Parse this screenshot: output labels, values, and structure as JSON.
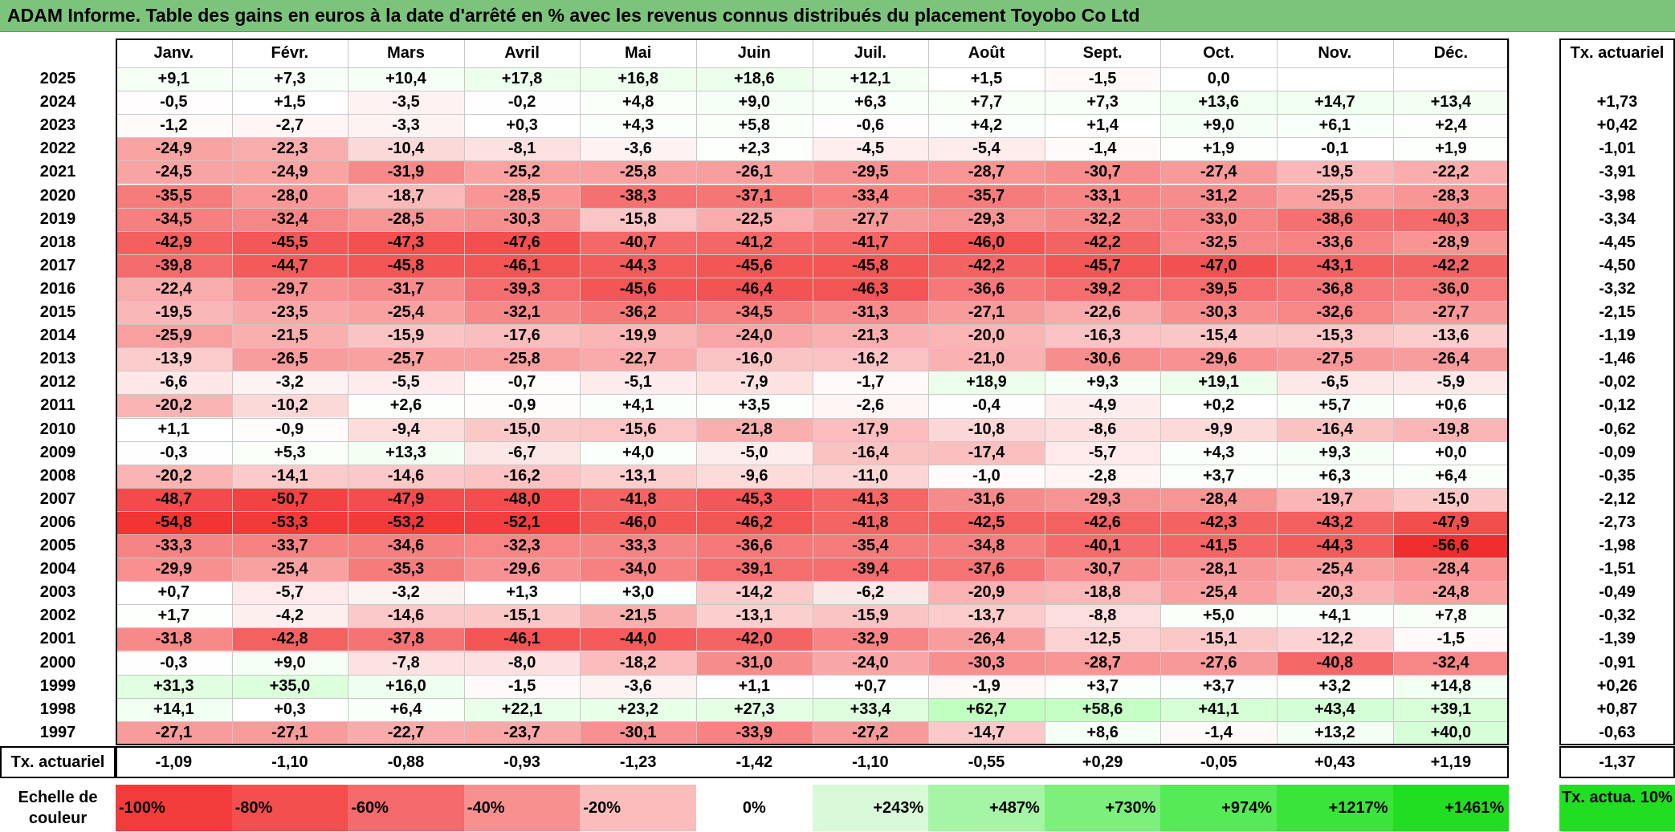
{
  "title": "ADAM Informe. Table des gains en euros à la date d'arrêté en % avec les revenus connus distribués du placement Toyobo Co Ltd",
  "chart_data": {
    "type": "heatmap",
    "title": "ADAM Informe. Table des gains en euros à la date d'arrêté en % avec les revenus connus distribués du placement Toyobo Co Ltd",
    "months": [
      "Janv.",
      "Févr.",
      "Mars",
      "Avril",
      "Mai",
      "Juin",
      "Juil.",
      "Août",
      "Sept.",
      "Oct.",
      "Nov.",
      "Déc."
    ],
    "annual_header": "Tx. actuariel",
    "rows": [
      {
        "year": "2025",
        "values": [
          "+9,1",
          "+7,3",
          "+10,4",
          "+17,8",
          "+16,8",
          "+18,6",
          "+12,1",
          "+1,5",
          "-1,5",
          "0,0",
          "",
          ""
        ],
        "annual": ""
      },
      {
        "year": "2024",
        "values": [
          "-0,5",
          "+1,5",
          "-3,5",
          "-0,2",
          "+4,8",
          "+9,0",
          "+6,3",
          "+7,7",
          "+7,3",
          "+13,6",
          "+14,7",
          "+13,4"
        ],
        "annual": "+1,73"
      },
      {
        "year": "2023",
        "values": [
          "-1,2",
          "-2,7",
          "-3,3",
          "+0,3",
          "+4,3",
          "+5,8",
          "-0,6",
          "+4,2",
          "+1,4",
          "+9,0",
          "+6,1",
          "+2,4"
        ],
        "annual": "+0,42"
      },
      {
        "year": "2022",
        "values": [
          "-24,9",
          "-22,3",
          "-10,4",
          "-8,1",
          "-3,6",
          "+2,3",
          "-4,5",
          "-5,4",
          "-1,4",
          "+1,9",
          "-0,1",
          "+1,9"
        ],
        "annual": "-1,01"
      },
      {
        "year": "2021",
        "values": [
          "-24,5",
          "-24,9",
          "-31,9",
          "-25,2",
          "-25,8",
          "-26,1",
          "-29,5",
          "-28,7",
          "-30,7",
          "-27,4",
          "-19,5",
          "-22,2"
        ],
        "annual": "-3,91"
      },
      {
        "year": "2020",
        "values": [
          "-35,5",
          "-28,0",
          "-18,7",
          "-28,5",
          "-38,3",
          "-37,1",
          "-33,4",
          "-35,7",
          "-33,1",
          "-31,2",
          "-25,5",
          "-28,3"
        ],
        "annual": "-3,98"
      },
      {
        "year": "2019",
        "values": [
          "-34,5",
          "-32,4",
          "-28,5",
          "-30,3",
          "-15,8",
          "-22,5",
          "-27,7",
          "-29,3",
          "-32,2",
          "-33,0",
          "-38,6",
          "-40,3"
        ],
        "annual": "-3,34"
      },
      {
        "year": "2018",
        "values": [
          "-42,9",
          "-45,5",
          "-47,3",
          "-47,6",
          "-40,7",
          "-41,2",
          "-41,7",
          "-46,0",
          "-42,2",
          "-32,5",
          "-33,6",
          "-28,9"
        ],
        "annual": "-4,45"
      },
      {
        "year": "2017",
        "values": [
          "-39,8",
          "-44,7",
          "-45,8",
          "-46,1",
          "-44,3",
          "-45,6",
          "-45,8",
          "-42,2",
          "-45,7",
          "-47,0",
          "-43,1",
          "-42,2"
        ],
        "annual": "-4,50"
      },
      {
        "year": "2016",
        "values": [
          "-22,4",
          "-29,7",
          "-31,7",
          "-39,3",
          "-45,6",
          "-46,4",
          "-46,3",
          "-36,6",
          "-39,2",
          "-39,5",
          "-36,8",
          "-36,0"
        ],
        "annual": "-3,32"
      },
      {
        "year": "2015",
        "values": [
          "-19,5",
          "-23,5",
          "-25,4",
          "-32,1",
          "-36,2",
          "-34,5",
          "-31,3",
          "-27,1",
          "-22,6",
          "-30,3",
          "-32,6",
          "-27,7"
        ],
        "annual": "-2,15"
      },
      {
        "year": "2014",
        "values": [
          "-25,9",
          "-21,5",
          "-15,9",
          "-17,6",
          "-19,9",
          "-24,0",
          "-21,3",
          "-20,0",
          "-16,3",
          "-15,4",
          "-15,3",
          "-13,6"
        ],
        "annual": "-1,19"
      },
      {
        "year": "2013",
        "values": [
          "-13,9",
          "-26,5",
          "-25,7",
          "-25,8",
          "-22,7",
          "-16,0",
          "-16,2",
          "-21,0",
          "-30,6",
          "-29,6",
          "-27,5",
          "-26,4"
        ],
        "annual": "-1,46"
      },
      {
        "year": "2012",
        "values": [
          "-6,6",
          "-3,2",
          "-5,5",
          "-0,7",
          "-5,1",
          "-7,9",
          "-1,7",
          "+18,9",
          "+9,3",
          "+19,1",
          "-6,5",
          "-5,9"
        ],
        "annual": "-0,02"
      },
      {
        "year": "2011",
        "values": [
          "-20,2",
          "-10,2",
          "+2,6",
          "-0,9",
          "+4,1",
          "+3,5",
          "-2,6",
          "-0,4",
          "-4,9",
          "+0,2",
          "+5,7",
          "+0,6"
        ],
        "annual": "-0,12"
      },
      {
        "year": "2010",
        "values": [
          "+1,1",
          "-0,9",
          "-9,4",
          "-15,0",
          "-15,6",
          "-21,8",
          "-17,9",
          "-10,8",
          "-8,6",
          "-9,9",
          "-16,4",
          "-19,8"
        ],
        "annual": "-0,62"
      },
      {
        "year": "2009",
        "values": [
          "-0,3",
          "+5,3",
          "+13,3",
          "-6,7",
          "+4,0",
          "-5,0",
          "-16,4",
          "-17,4",
          "-5,7",
          "+4,3",
          "+9,3",
          "+0,0"
        ],
        "annual": "-0,09"
      },
      {
        "year": "2008",
        "values": [
          "-20,2",
          "-14,1",
          "-14,6",
          "-16,2",
          "-13,1",
          "-9,6",
          "-11,0",
          "-1,0",
          "-2,8",
          "+3,7",
          "+6,3",
          "+6,4"
        ],
        "annual": "-0,35"
      },
      {
        "year": "2007",
        "values": [
          "-48,7",
          "-50,7",
          "-47,9",
          "-48,0",
          "-41,8",
          "-45,3",
          "-41,3",
          "-31,6",
          "-29,3",
          "-28,4",
          "-19,7",
          "-15,0"
        ],
        "annual": "-2,12"
      },
      {
        "year": "2006",
        "values": [
          "-54,8",
          "-53,3",
          "-53,2",
          "-52,1",
          "-46,0",
          "-46,2",
          "-41,8",
          "-42,5",
          "-42,6",
          "-42,3",
          "-43,2",
          "-47,9"
        ],
        "annual": "-2,73"
      },
      {
        "year": "2005",
        "values": [
          "-33,3",
          "-33,7",
          "-34,6",
          "-32,3",
          "-33,3",
          "-36,6",
          "-35,4",
          "-34,8",
          "-40,1",
          "-41,5",
          "-44,3",
          "-56,6"
        ],
        "annual": "-1,98"
      },
      {
        "year": "2004",
        "values": [
          "-29,9",
          "-25,4",
          "-35,3",
          "-29,6",
          "-34,0",
          "-39,1",
          "-39,4",
          "-37,6",
          "-30,7",
          "-28,1",
          "-25,4",
          "-28,4"
        ],
        "annual": "-1,51"
      },
      {
        "year": "2003",
        "values": [
          "+0,7",
          "-5,7",
          "-3,2",
          "+1,3",
          "+3,0",
          "-14,2",
          "-6,2",
          "-20,9",
          "-18,8",
          "-25,4",
          "-20,3",
          "-24,8"
        ],
        "annual": "-0,49"
      },
      {
        "year": "2002",
        "values": [
          "+1,7",
          "-4,2",
          "-14,6",
          "-15,1",
          "-21,5",
          "-13,1",
          "-15,9",
          "-13,7",
          "-8,8",
          "+5,0",
          "+4,1",
          "+7,8"
        ],
        "annual": "-0,32"
      },
      {
        "year": "2001",
        "values": [
          "-31,8",
          "-42,8",
          "-37,8",
          "-46,1",
          "-44,0",
          "-42,0",
          "-32,9",
          "-26,4",
          "-12,5",
          "-15,1",
          "-12,2",
          "-1,5"
        ],
        "annual": "-1,39"
      },
      {
        "year": "2000",
        "values": [
          "-0,3",
          "+9,0",
          "-7,8",
          "-8,0",
          "-18,2",
          "-31,0",
          "-24,0",
          "-30,3",
          "-28,7",
          "-27,6",
          "-40,8",
          "-32,4"
        ],
        "annual": "-0,91"
      },
      {
        "year": "1999",
        "values": [
          "+31,3",
          "+35,0",
          "+16,0",
          "-1,5",
          "-3,6",
          "+1,1",
          "+0,7",
          "-1,9",
          "+3,7",
          "+3,7",
          "+3,2",
          "+14,8"
        ],
        "annual": "+0,26"
      },
      {
        "year": "1998",
        "values": [
          "+14,1",
          "+0,3",
          "+6,4",
          "+22,1",
          "+23,2",
          "+27,3",
          "+33,4",
          "+62,7",
          "+58,6",
          "+41,1",
          "+43,4",
          "+39,1"
        ],
        "annual": "+0,87"
      },
      {
        "year": "1997",
        "values": [
          "-27,1",
          "-27,1",
          "-22,7",
          "-23,7",
          "-30,1",
          "-33,9",
          "-27,2",
          "-14,7",
          "+8,6",
          "-1,4",
          "+13,2",
          "+40,0"
        ],
        "annual": "-0,63"
      }
    ],
    "footer": {
      "label": "Tx. actuariel",
      "values": [
        "-1,09",
        "-1,10",
        "-0,88",
        "-0,93",
        "-1,23",
        "-1,42",
        "-1,10",
        "-0,55",
        "+0,29",
        "-0,05",
        "+0,43",
        "+1,19"
      ],
      "annual": "-1,37"
    },
    "scale": {
      "label": "Echelle de couleur",
      "steps": [
        {
          "text": "-100%",
          "color": "#f23c3c"
        },
        {
          "text": "-80%",
          "color": "#f34f4f"
        },
        {
          "text": "-60%",
          "color": "#f56a6a"
        },
        {
          "text": "-40%",
          "color": "#f89090"
        },
        {
          "text": "-20%",
          "color": "#fbbcbc"
        },
        {
          "text": "0%",
          "color": "#ffffff"
        },
        {
          "text": "+243%",
          "color": "#d8fad8"
        },
        {
          "text": "+487%",
          "color": "#a6f4a6"
        },
        {
          "text": "+730%",
          "color": "#7cef7c"
        },
        {
          "text": "+974%",
          "color": "#56ea56"
        },
        {
          "text": "+1217%",
          "color": "#3ae43a"
        },
        {
          "text": "+1461%",
          "color": "#22de22"
        }
      ],
      "annual_text": "Tx. actua. 10%",
      "annual_color": "#22de22"
    },
    "colors": {
      "negative_max": "#f23c3c",
      "positive_max": "#22de22",
      "neutral": "#ffffff"
    }
  }
}
